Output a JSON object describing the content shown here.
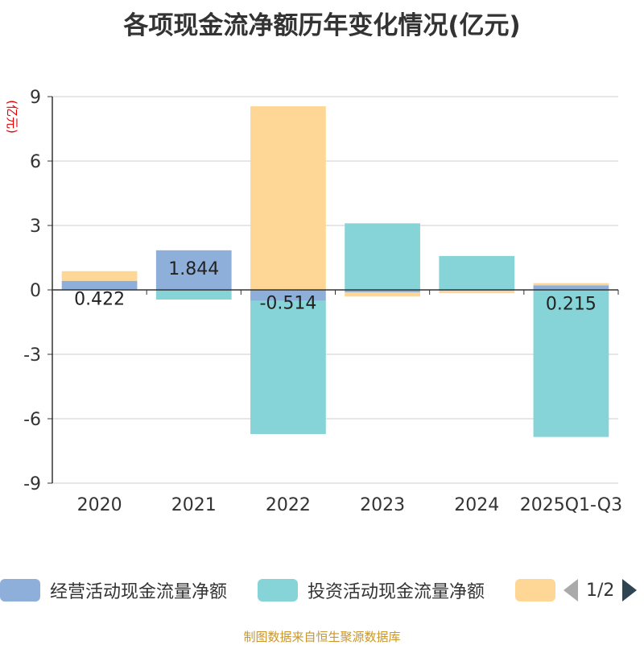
{
  "title": "各项现金流净额历年变化情况(亿元)",
  "source": "制图数据来自恒生聚源数据库",
  "legend_page": "1/2",
  "chart_data": {
    "type": "bar",
    "stacked": true,
    "categories": [
      "2020",
      "2021",
      "2022",
      "2023",
      "2024",
      "2025Q1-Q3"
    ],
    "ylabel": "(亿元)",
    "ylim": [
      -9,
      9
    ],
    "yticks": [
      -9,
      -6,
      -3,
      0,
      3,
      6,
      9
    ],
    "grid": true,
    "legend_position": "bottom",
    "series": [
      {
        "name": "经营活动现金流量净额",
        "color": "#8fafdb",
        "values": [
          0.422,
          1.844,
          -0.514,
          -0.11,
          -0.034,
          0.215
        ],
        "labels": [
          "0.422",
          "1.844",
          "-0.514",
          "",
          "",
          "0.215"
        ]
      },
      {
        "name": "投资活动现金流量净额",
        "color": "#87d4d8",
        "values": [
          0.0,
          -0.45,
          -6.2,
          3.1,
          1.58,
          -6.85
        ],
        "labels": [
          "",
          "",
          "",
          "",
          "",
          ""
        ]
      },
      {
        "name": "",
        "color": "#fed796",
        "values": [
          0.45,
          0.0,
          8.55,
          -0.2,
          -0.12,
          0.1
        ],
        "labels": [
          "",
          "",
          "",
          "",
          "",
          ""
        ]
      }
    ]
  }
}
